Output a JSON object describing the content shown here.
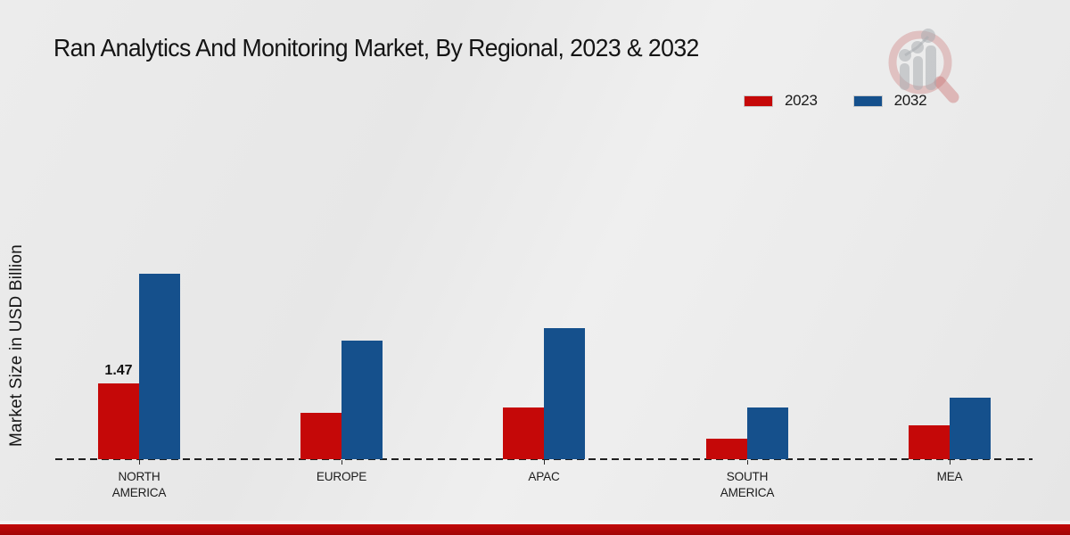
{
  "header": {
    "title": "Ran Analytics And Monitoring Market, By Regional, 2023 & 2032"
  },
  "y_axis": {
    "label": "Market Size in USD Billion"
  },
  "watermark": {
    "icon": "magnifier-growth-chart-logo"
  },
  "footer": {
    "accent_color": "#b40808"
  },
  "chart_data": {
    "type": "bar",
    "title": "Ran Analytics And Monitoring Market, By Regional, 2023 & 2032",
    "xlabel": "",
    "ylabel": "Market Size in USD Billion",
    "categories": [
      "NORTH AMERICA",
      "EUROPE",
      "APAC",
      "SOUTH AMERICA",
      "MEA"
    ],
    "series": [
      {
        "name": "2023",
        "color": "#c50808",
        "values": [
          1.47,
          0.9,
          1.0,
          0.4,
          0.65
        ]
      },
      {
        "name": "2032",
        "color": "#15508c",
        "values": [
          3.6,
          2.3,
          2.55,
          1.0,
          1.2
        ]
      }
    ],
    "data_labels": [
      {
        "category": "NORTH AMERICA",
        "series": "2023",
        "text": "1.47"
      }
    ],
    "ylim": [
      0,
      4
    ],
    "grid": false,
    "y_axis_line": false,
    "baseline_style": "dashed",
    "legend_position": "top-right"
  }
}
